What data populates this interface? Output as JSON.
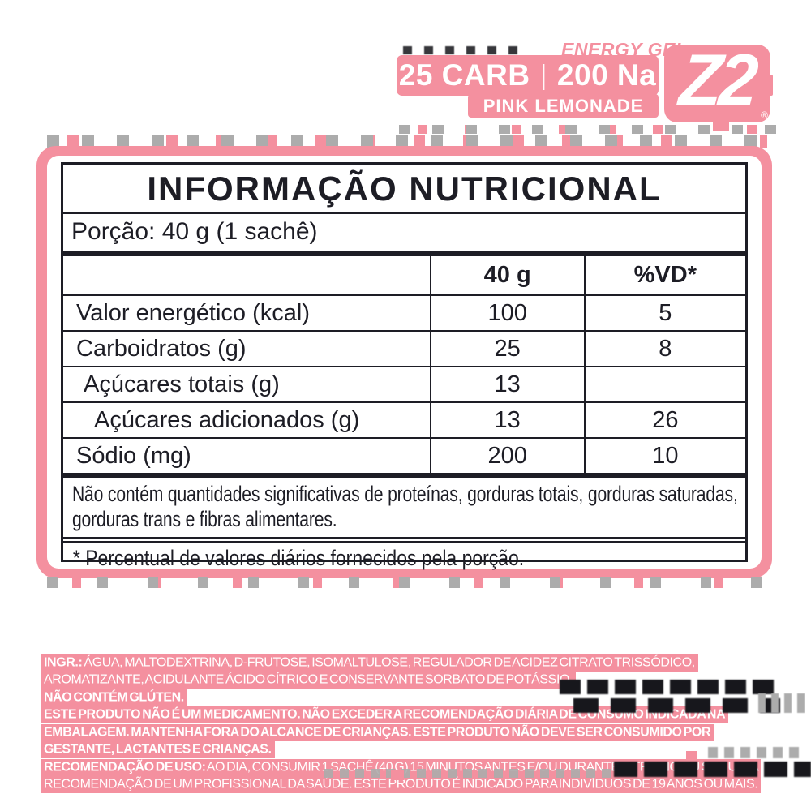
{
  "badge": {
    "product_line": "ENERGY GEL",
    "macros": "25 CARB",
    "separator": "|",
    "sodium": "200 Na",
    "flavor": "PINK LEMONADE",
    "logo": "Z2",
    "registered_mark": "®"
  },
  "nutrition": {
    "title": "INFORMAÇÃO NUTRICIONAL",
    "serving": "Porção: 40 g (1 sachê)",
    "columns": [
      "",
      "40 g",
      "%VD*"
    ],
    "rows": [
      {
        "label": "Valor energético (kcal)",
        "amount": "100",
        "vd": "5"
      },
      {
        "label": "Carboidratos (g)",
        "amount": "25",
        "vd": "8"
      },
      {
        "label": "Açúcares totais (g)",
        "amount": "13",
        "vd": ""
      },
      {
        "label": "Açúcares adicionados (g)",
        "amount": "13",
        "vd": "26"
      },
      {
        "label": "Sódio (mg)",
        "amount": "200",
        "vd": "10"
      }
    ],
    "note": "Não contém quantidades significativas de proteínas, gorduras totais, gorduras saturadas, gorduras trans e fibras alimentares.",
    "footnote": "* Percentual de valores diários fornecidos pela porção."
  },
  "regulatory": {
    "ingredients_label": "INGR.:",
    "ingredients": " ÁGUA, MALTODEXTRINA, D-FRUTOSE, ISOMALTULOSE, REGULADOR DE ACIDEZ CITRATO TRISSÓDICO, AROMATIZANTE, ACIDULANTE ÁCIDO CÍTRICO E CONSERVANTE SORBATO DE POTÁSSIO.",
    "gluten": "NÃO CONTÉM GLÚTEN.",
    "warning": "ESTE PRODUTO NÃO É UM MEDICAMENTO. NÃO EXCEDER A RECOMENDAÇÃO DIÁRIA DE CONSUMO INDICADA NA EMBALAGEM. MANTENHA FORA DO ALCANCE DE CRIANÇAS. ESTE PRODUTO NÃO DEVE SER CONSUMIDO POR GESTANTE, LACTANTES E CRIANÇAS.",
    "usage_label": "RECOMENDAÇÃO DE USO:",
    "usage": " AO DIA, CONSUMIR 1 SACHÊ (40 G) 15 MINUTOS ANTES  E/OU DURANTE O TREINO OU SEGUIR A RECOMENDAÇÃO DE UM PROFISSIONAL DA SAÚDE. ESTE PRODUTO É INDICADO PARA INDIVÍDUOS DE 19 ANOS OU MAIS."
  },
  "colors": {
    "accent_pink": "#F4909F",
    "ink": "#1D1D25",
    "artifact_gray": "#ACACAC",
    "paper_white": "#FFFFFF"
  }
}
